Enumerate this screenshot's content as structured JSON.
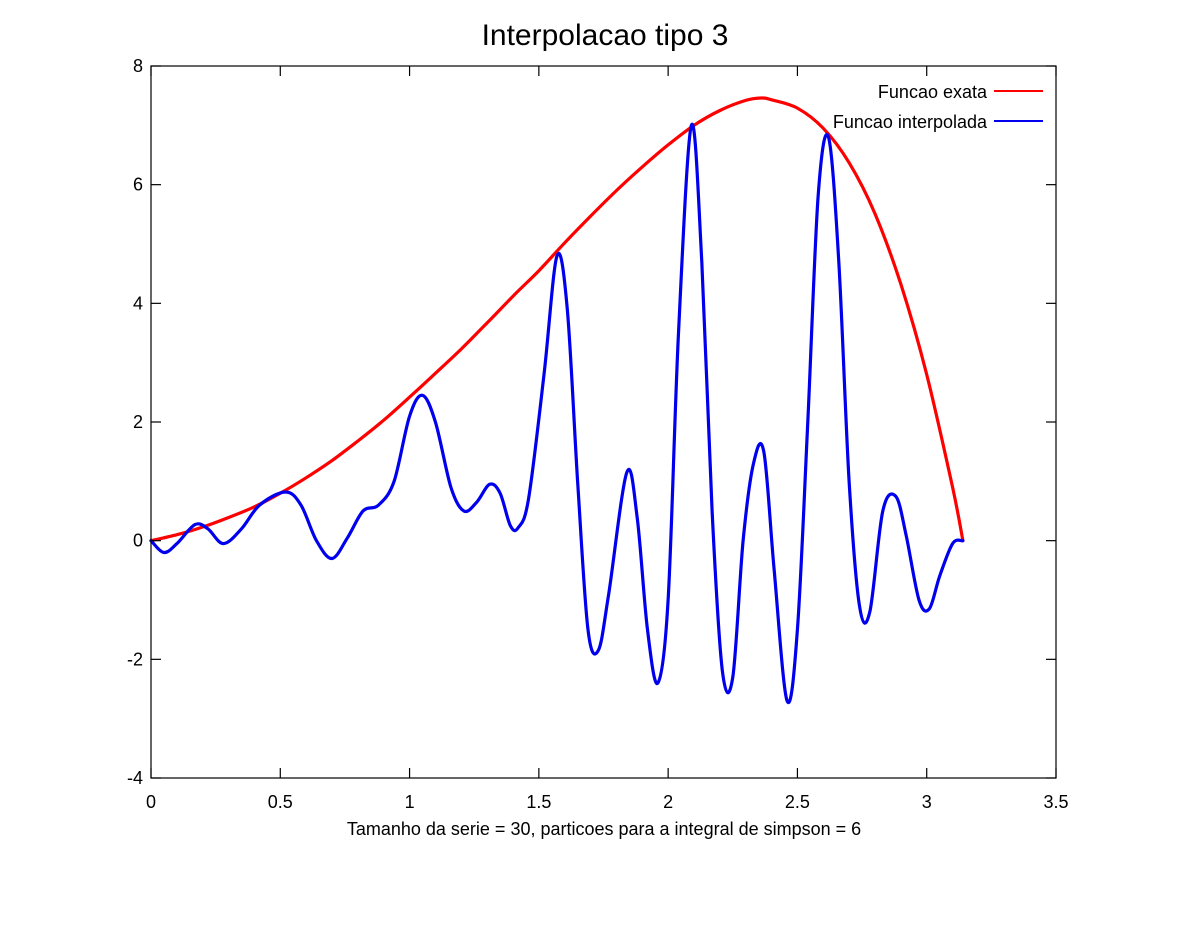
{
  "chart_data": {
    "type": "line",
    "title": "Interpolacao tipo 3",
    "xlabel": "Tamanho da serie = 30, particoes para a integral de simpson = 6",
    "ylabel": "",
    "xlim": [
      0,
      3.5
    ],
    "ylim": [
      -4,
      8
    ],
    "xticks": [
      0,
      0.5,
      1,
      1.5,
      2,
      2.5,
      3,
      3.5
    ],
    "xtick_labels": [
      "0",
      "0.5",
      "1",
      "1.5",
      "2",
      "2.5",
      "3",
      "3.5"
    ],
    "yticks": [
      -4,
      -2,
      0,
      2,
      4,
      6,
      8
    ],
    "ytick_labels": [
      "-4",
      "-2",
      "0",
      "2",
      "4",
      "6",
      "8"
    ],
    "grid": false,
    "legend_position": "top-right",
    "series": [
      {
        "name": "Funcao exata",
        "color": "#ff0000",
        "x": [
          0,
          0.1,
          0.2,
          0.3,
          0.4,
          0.5,
          0.6,
          0.7,
          0.8,
          0.9,
          1.0,
          1.1,
          1.2,
          1.3,
          1.4,
          1.5,
          1.6,
          1.7,
          1.8,
          1.9,
          2.0,
          2.1,
          2.2,
          2.3,
          2.36,
          2.4,
          2.5,
          2.6,
          2.7,
          2.8,
          2.9,
          3.0,
          3.1,
          3.14
        ],
        "y": [
          0.0,
          0.1,
          0.23,
          0.39,
          0.57,
          0.8,
          1.06,
          1.35,
          1.68,
          2.03,
          2.42,
          2.82,
          3.23,
          3.67,
          4.12,
          4.55,
          5.02,
          5.47,
          5.9,
          6.3,
          6.67,
          7.0,
          7.25,
          7.42,
          7.46,
          7.43,
          7.29,
          6.95,
          6.37,
          5.51,
          4.32,
          2.8,
          0.9,
          0.0
        ]
      },
      {
        "name": "Funcao interpolada",
        "color": "#0000ee",
        "x": [
          0,
          0.05,
          0.1,
          0.17,
          0.22,
          0.28,
          0.35,
          0.42,
          0.52,
          0.58,
          0.64,
          0.7,
          0.76,
          0.82,
          0.88,
          0.94,
          1.0,
          1.05,
          1.1,
          1.16,
          1.21,
          1.26,
          1.31,
          1.35,
          1.39,
          1.42,
          1.46,
          1.52,
          1.57,
          1.61,
          1.65,
          1.69,
          1.73,
          1.77,
          1.84,
          1.88,
          1.92,
          1.96,
          2.0,
          2.04,
          2.09,
          2.13,
          2.17,
          2.21,
          2.25,
          2.29,
          2.33,
          2.37,
          2.41,
          2.46,
          2.5,
          2.54,
          2.58,
          2.62,
          2.66,
          2.7,
          2.74,
          2.78,
          2.83,
          2.88,
          2.92,
          2.97,
          3.01,
          3.05,
          3.1,
          3.14
        ],
        "y": [
          0.0,
          -0.2,
          -0.05,
          0.27,
          0.2,
          -0.05,
          0.2,
          0.6,
          0.82,
          0.6,
          0.0,
          -0.3,
          0.05,
          0.5,
          0.6,
          1.0,
          2.1,
          2.45,
          2.0,
          0.9,
          0.5,
          0.65,
          0.95,
          0.8,
          0.25,
          0.22,
          0.7,
          2.8,
          4.8,
          3.9,
          1.0,
          -1.5,
          -1.85,
          -0.9,
          1.15,
          0.4,
          -1.5,
          -2.4,
          -1.0,
          3.5,
          7.0,
          4.7,
          0.5,
          -2.2,
          -2.3,
          0.0,
          1.3,
          1.5,
          -0.5,
          -2.7,
          -1.5,
          2.0,
          5.8,
          6.8,
          4.7,
          1.0,
          -1.1,
          -1.2,
          0.5,
          0.75,
          0.1,
          -1.0,
          -1.15,
          -0.6,
          -0.05,
          0.0
        ]
      }
    ]
  }
}
